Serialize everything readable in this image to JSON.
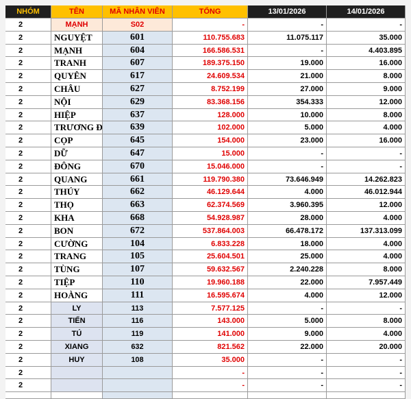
{
  "table": {
    "header": [
      "NHÓM",
      "TÊN",
      "MÃ NHÂN VIÊN",
      "TỔNG",
      "13/01/2026",
      "14/01/2026"
    ],
    "rows": [
      [
        "2",
        "MẠNH",
        "S02",
        "-",
        "-",
        "-"
      ],
      [
        "2",
        "NGUYỆT",
        "601",
        "110.755.683",
        "11.075.117",
        "35.000"
      ],
      [
        "2",
        "MẠNH",
        "604",
        "166.586.531",
        "-",
        "4.403.895"
      ],
      [
        "2",
        "TRANH",
        "607",
        "189.375.150",
        "19.000",
        "16.000"
      ],
      [
        "2",
        "QUYÊN",
        "617",
        "24.609.534",
        "21.000",
        "8.000"
      ],
      [
        "2",
        "CHÂU",
        "627",
        "8.752.199",
        "27.000",
        "9.000"
      ],
      [
        "2",
        "NỘI",
        "629",
        "83.368.156",
        "354.333",
        "12.000"
      ],
      [
        "2",
        "HIỆP",
        "637",
        "128.000",
        "10.000",
        "8.000"
      ],
      [
        "2",
        "TRƯƠNG Đ",
        "639",
        "102.000",
        "5.000",
        "4.000"
      ],
      [
        "2",
        "CỌP",
        "645",
        "154.000",
        "23.000",
        "16.000"
      ],
      [
        "2",
        "DỮ",
        "647",
        "15.000",
        "-",
        "-"
      ],
      [
        "2",
        "ĐÔNG",
        "670",
        "15.046.000",
        "-",
        "-"
      ],
      [
        "2",
        "QUANG",
        "661",
        "119.790.380",
        "73.646.949",
        "14.262.823"
      ],
      [
        "2",
        "THÚY",
        "662",
        "46.129.644",
        "4.000",
        "46.012.944"
      ],
      [
        "2",
        "THỌ",
        "663",
        "62.374.569",
        "3.960.395",
        "12.000"
      ],
      [
        "2",
        "KHA",
        "668",
        "54.928.987",
        "28.000",
        "4.000"
      ],
      [
        "2",
        "BON",
        "672",
        "537.864.003",
        "66.478.172",
        "137.313.099"
      ],
      [
        "2",
        "CƯỜNG",
        "104",
        "6.833.228",
        "18.000",
        "4.000"
      ],
      [
        "2",
        "TRANG",
        "105",
        "25.604.501",
        "25.000",
        "4.000"
      ],
      [
        "2",
        "TÙNG",
        "107",
        "59.632.567",
        "2.240.228",
        "8.000"
      ],
      [
        "2",
        "TIỆP",
        "110",
        "19.960.188",
        "22.000",
        "7.957.449"
      ],
      [
        "2",
        "HOÀNG",
        "111",
        "16.595.674",
        "4.000",
        "12.000"
      ],
      [
        "2",
        "LY",
        "113",
        "7.577.125",
        "-",
        "-"
      ],
      [
        "2",
        "TIẾN",
        "116",
        "143.000",
        "5.000",
        "8.000"
      ],
      [
        "2",
        "TÚ",
        "119",
        "141.000",
        "9.000",
        "4.000"
      ],
      [
        "2",
        "XIANG",
        "632",
        "821.562",
        "22.000",
        "20.000"
      ],
      [
        "2",
        "HUY",
        "108",
        "35.000",
        "-",
        "-"
      ],
      [
        "2",
        null,
        null,
        "-",
        "-",
        "-"
      ],
      [
        "2",
        null,
        null,
        "-",
        "-",
        "-"
      ]
    ]
  }
}
